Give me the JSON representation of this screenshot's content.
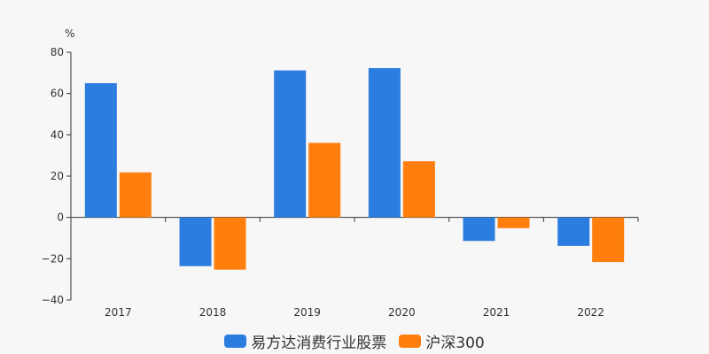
{
  "chart_data": {
    "type": "bar",
    "categories": [
      "2017",
      "2018",
      "2019",
      "2020",
      "2021",
      "2022"
    ],
    "series": [
      {
        "name": "易方达消费行业股票",
        "values": [
          65.0,
          -23.6,
          71.2,
          72.3,
          -11.4,
          -13.8
        ],
        "color": "#2b7de0"
      },
      {
        "name": "沪深300",
        "values": [
          21.8,
          -25.3,
          36.1,
          27.2,
          -5.2,
          -21.6
        ],
        "color": "#ff7f0e"
      }
    ],
    "ylabel": "%",
    "ylim": [
      -40,
      80
    ],
    "yticks": [
      -40,
      -20,
      0,
      20,
      40,
      60,
      80
    ],
    "grid": false,
    "legend_position": "bottom"
  }
}
